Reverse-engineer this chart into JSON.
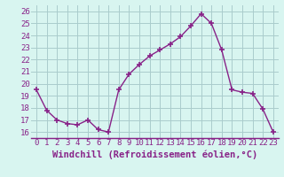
{
  "x": [
    0,
    1,
    2,
    3,
    4,
    5,
    6,
    7,
    8,
    9,
    10,
    11,
    12,
    13,
    14,
    15,
    16,
    17,
    18,
    19,
    20,
    21,
    22,
    23
  ],
  "y": [
    19.5,
    17.8,
    17.0,
    16.7,
    16.6,
    17.0,
    16.2,
    16.0,
    19.5,
    20.8,
    21.6,
    22.3,
    22.8,
    23.3,
    23.9,
    24.8,
    25.8,
    25.0,
    22.8,
    19.5,
    19.3,
    19.2,
    17.9,
    16.0
  ],
  "line_color": "#882288",
  "marker": "+",
  "bg_color": "#d8f5f0",
  "grid_color": "#aacccc",
  "xlabel": "Windchill (Refroidissement éolien,°C)",
  "xlabel_color": "#882288",
  "tick_color": "#882288",
  "ylim": [
    15.5,
    26.5
  ],
  "xlim": [
    -0.5,
    23.5
  ],
  "yticks": [
    16,
    17,
    18,
    19,
    20,
    21,
    22,
    23,
    24,
    25,
    26
  ],
  "xticks": [
    0,
    1,
    2,
    3,
    4,
    5,
    6,
    7,
    8,
    9,
    10,
    11,
    12,
    13,
    14,
    15,
    16,
    17,
    18,
    19,
    20,
    21,
    22,
    23
  ],
  "xtick_labels": [
    "0",
    "1",
    "2",
    "3",
    "4",
    "5",
    "6",
    "7",
    "8",
    "9",
    "10",
    "11",
    "12",
    "13",
    "14",
    "15",
    "16",
    "17",
    "18",
    "19",
    "20",
    "21",
    "22",
    "23"
  ],
  "font_size": 6.5,
  "xlabel_font_size": 7.5,
  "linewidth": 1.0,
  "markersize": 5,
  "markeredgewidth": 1.2
}
